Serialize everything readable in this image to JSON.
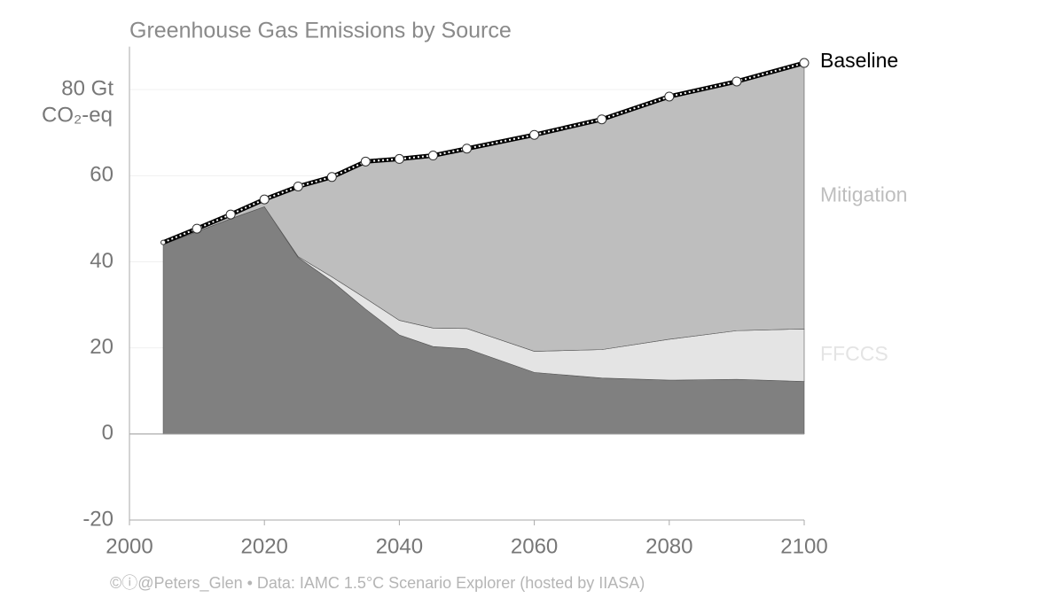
{
  "chart_data": {
    "type": "stacked-area",
    "title": "Greenhouse Gas Emissions by Source",
    "y_unit": "CO₂-eq",
    "x": [
      2005,
      2010,
      2015,
      2020,
      2025,
      2030,
      2035,
      2040,
      2045,
      2050,
      2060,
      2070,
      2080,
      2090,
      2100
    ],
    "series": [
      {
        "color": "#808080",
        "values": [
          44,
          47,
          50,
          52.8,
          41,
          35.5,
          29,
          23,
          20.3,
          19.8,
          14.3,
          13,
          12.5,
          12.7,
          12.2
        ]
      },
      {
        "name": "FFCCS",
        "color": "#e4e4e4",
        "values": [
          0,
          0,
          0,
          0,
          0.2,
          1,
          2.5,
          3.4,
          4.3,
          4.7,
          4.9,
          6.6,
          9.5,
          11.3,
          12.2
        ]
      },
      {
        "name": "Mitigation",
        "color": "#bebebe",
        "values": [
          0.5,
          0.7,
          0.6,
          1.7,
          16.3,
          23.2,
          31.8,
          37.5,
          40.1,
          41.8,
          50.3,
          53.5,
          56.4,
          57.9,
          61.8
        ]
      }
    ],
    "baseline": {
      "name": "Baseline",
      "color": "#000000",
      "values": [
        44.5,
        47.7,
        51,
        54.5,
        57.5,
        59.7,
        63.3,
        63.9,
        64.7,
        66.3,
        69.5,
        73.1,
        78.4,
        81.9,
        86.2
      ]
    },
    "xlim": [
      2000,
      2100
    ],
    "xticks": [
      2000,
      2020,
      2040,
      2060,
      2080,
      2100
    ],
    "ylim": [
      -20,
      90
    ],
    "yticks": [
      -20,
      0,
      20,
      40,
      60,
      {
        "value": 80,
        "label": "80 Gt"
      }
    ],
    "grid": true,
    "source": "©ⓘ@Peters_Glen  •  Data: IAMC 1.5°C Scenario Explorer (hosted by IIASA)"
  }
}
